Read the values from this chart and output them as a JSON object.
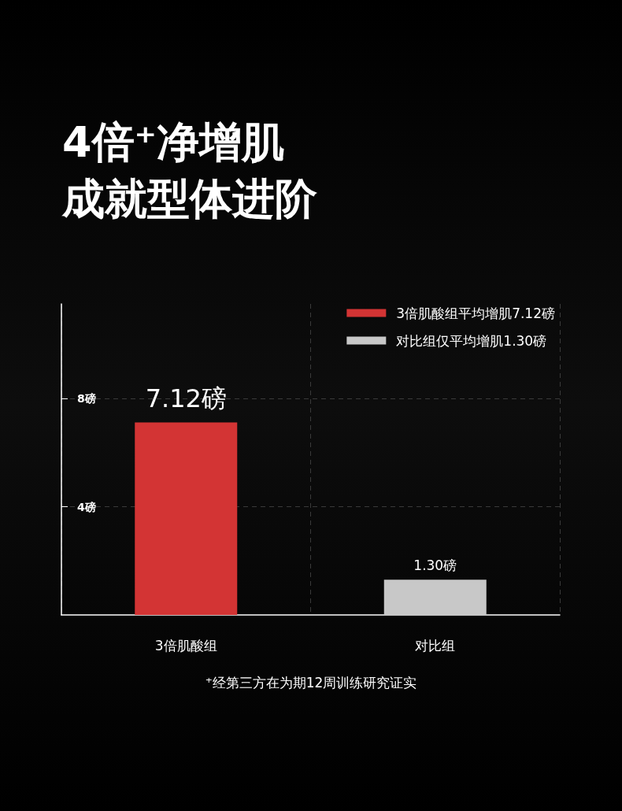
{
  "chart_data": {
    "type": "bar",
    "title": "4倍⁺净增肌",
    "subtitle": "成就型体进阶",
    "categories": [
      "3倍肌酸组",
      "对比组"
    ],
    "series": [
      {
        "name": "3倍肌酸组平均增肌7.12磅",
        "color": "#d33434",
        "values": [
          7.12,
          null
        ],
        "value_labels": [
          "7.12磅",
          null
        ]
      },
      {
        "name": "对比组仅平均增肌1.30磅",
        "color": "#c8c8c8",
        "values": [
          null,
          1.3
        ],
        "value_labels": [
          null,
          "1.30磅"
        ]
      }
    ],
    "ylim": [
      0,
      11.5
    ],
    "yticks": [
      {
        "value": 4,
        "label": "4磅"
      },
      {
        "value": 8,
        "label": "8磅"
      }
    ],
    "grid": true,
    "legend": "top right",
    "annotations": [
      "⁺经第三方在为期12周训练研究证实"
    ]
  }
}
